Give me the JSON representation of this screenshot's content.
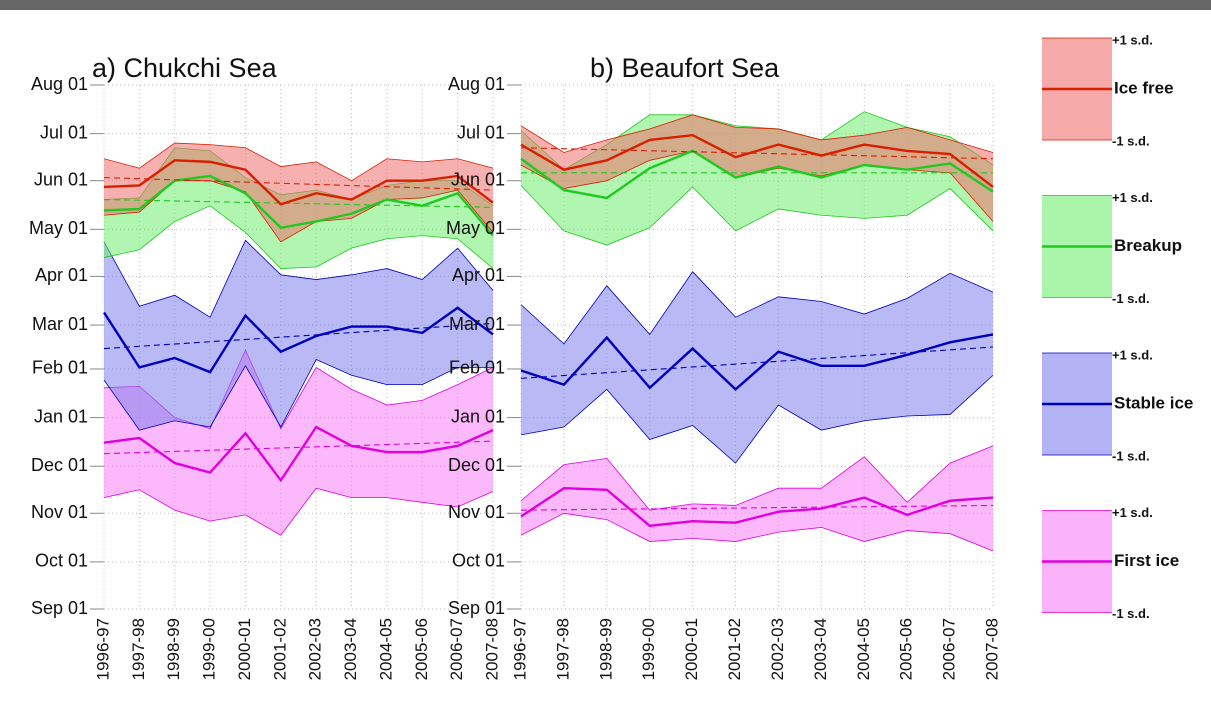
{
  "chart_data": [
    {
      "type": "band_line",
      "title": "a) Chukchi Sea",
      "categories": [
        "1996-97",
        "1997-98",
        "1998-99",
        "1999-00",
        "2000-01",
        "2001-02",
        "2002-03",
        "2003-04",
        "2004-05",
        "2005-06",
        "2006-07",
        "2007-08"
      ],
      "ylim": [
        0,
        334
      ],
      "yticks": [
        {
          "value": 0,
          "label": "Sep 01"
        },
        {
          "value": 30,
          "label": "Oct 01"
        },
        {
          "value": 61,
          "label": "Nov 01"
        },
        {
          "value": 91,
          "label": "Dec 01"
        },
        {
          "value": 122,
          "label": "Jan 01"
        },
        {
          "value": 153,
          "label": "Feb 01"
        },
        {
          "value": 181,
          "label": "Mar 01"
        },
        {
          "value": 212,
          "label": "Apr 01"
        },
        {
          "value": 242,
          "label": "May 01"
        },
        {
          "value": 273,
          "label": "Jun 01"
        },
        {
          "value": 303,
          "label": "Jul 01"
        },
        {
          "value": 334,
          "label": "Aug 01"
        }
      ],
      "grid": true,
      "series": [
        {
          "name": "First ice",
          "color": "#e000e0",
          "fill": "#f77ff7",
          "values": [
            106,
            109,
            93,
            87,
            112,
            82,
            116,
            104,
            100,
            100,
            104,
            114
          ],
          "upper": [
            141,
            142,
            122,
            115,
            165,
            115,
            154,
            140,
            130,
            133,
            143,
            154
          ],
          "lower": [
            71,
            76,
            63,
            56,
            60,
            47,
            77,
            71,
            71,
            68,
            65,
            75
          ],
          "trend": [
            99,
            107
          ]
        },
        {
          "name": "Stable ice",
          "color": "#0000c0",
          "fill": "#7f7fef",
          "values": [
            189,
            154,
            160,
            151,
            187,
            164,
            174,
            180,
            180,
            176,
            192,
            175
          ],
          "upper": [
            234,
            193,
            200,
            186,
            235,
            213,
            210,
            213,
            217,
            210,
            230,
            203
          ],
          "lower": [
            146,
            114,
            120,
            116,
            155,
            116,
            159,
            149,
            143,
            143,
            154,
            154
          ],
          "trend": [
            166,
            182
          ]
        },
        {
          "name": "Breakup",
          "color": "#20c820",
          "fill": "#6fef6f",
          "values": [
            254,
            255,
            273,
            276,
            265,
            243,
            247,
            252,
            261,
            257,
            265,
            238
          ],
          "upper": [
            261,
            262,
            294,
            292,
            275,
            264,
            267,
            261,
            270,
            273,
            273,
            257
          ],
          "lower": [
            224,
            229,
            247,
            257,
            240,
            217,
            218,
            230,
            236,
            238,
            236,
            217
          ],
          "trend": [
            261,
            256
          ]
        },
        {
          "name": "Ice free",
          "color": "#d82000",
          "fill": "#f07070",
          "values": [
            269,
            270,
            286,
            285,
            280,
            258,
            265,
            261,
            273,
            273,
            276,
            259
          ],
          "upper": [
            287,
            281,
            297,
            296,
            294,
            282,
            285,
            273,
            287,
            285,
            287,
            281
          ],
          "lower": [
            251,
            253,
            273,
            273,
            266,
            234,
            247,
            249,
            261,
            262,
            267,
            240
          ],
          "trend": [
            275,
            267
          ]
        }
      ]
    },
    {
      "type": "band_line",
      "title": "b) Beaufort Sea",
      "categories": [
        "1996-97",
        "1997-98",
        "1998-99",
        "1999-00",
        "2000-01",
        "2001-02",
        "2002-03",
        "2003-04",
        "2004-05",
        "2005-06",
        "2006-07",
        "2007-08"
      ],
      "ylim": [
        0,
        334
      ],
      "yticks": [
        {
          "value": 0,
          "label": "Sep 01"
        },
        {
          "value": 30,
          "label": "Oct 01"
        },
        {
          "value": 61,
          "label": "Nov 01"
        },
        {
          "value": 91,
          "label": "Dec 01"
        },
        {
          "value": 122,
          "label": "Jan 01"
        },
        {
          "value": 153,
          "label": "Feb 01"
        },
        {
          "value": 181,
          "label": "Mar 01"
        },
        {
          "value": 212,
          "label": "Apr 01"
        },
        {
          "value": 242,
          "label": "May 01"
        },
        {
          "value": 273,
          "label": "Jun 01"
        },
        {
          "value": 303,
          "label": "Jul 01"
        },
        {
          "value": 334,
          "label": "Aug 01"
        }
      ],
      "grid": true,
      "series": [
        {
          "name": "First ice",
          "color": "#e000e0",
          "fill": "#f77ff7",
          "values": [
            59,
            77,
            76,
            53,
            56,
            55,
            62,
            64,
            71,
            60,
            69,
            71
          ],
          "upper": [
            69,
            92,
            96,
            63,
            67,
            66,
            77,
            77,
            97,
            68,
            93,
            104
          ],
          "lower": [
            47,
            61,
            57,
            43,
            45,
            43,
            49,
            52,
            43,
            50,
            48,
            37
          ],
          "trend": [
            63,
            66
          ]
        },
        {
          "name": "Stable ice",
          "color": "#0000c0",
          "fill": "#7f7fef",
          "values": [
            152,
            143,
            173,
            141,
            166,
            140,
            164,
            155,
            155,
            162,
            170,
            175
          ],
          "upper": [
            194,
            169,
            206,
            175,
            215,
            186,
            199,
            196,
            188,
            198,
            214,
            202
          ],
          "lower": [
            111,
            116,
            140,
            108,
            117,
            93,
            130,
            114,
            120,
            123,
            124,
            149
          ],
          "trend": [
            147,
            167
          ]
        },
        {
          "name": "Breakup",
          "color": "#20c820",
          "fill": "#6fef6f",
          "values": [
            287,
            267,
            262,
            281,
            292,
            275,
            282,
            275,
            283,
            280,
            284,
            266
          ],
          "upper": [
            305,
            280,
            296,
            315,
            315,
            308,
            306,
            299,
            317,
            307,
            301,
            283
          ],
          "lower": [
            270,
            241,
            232,
            243,
            269,
            241,
            255,
            251,
            249,
            251,
            268,
            241
          ],
          "trend": [
            278,
            278
          ]
        },
        {
          "name": "Ice free",
          "color": "#d82000",
          "fill": "#f07070",
          "values": [
            296,
            280,
            286,
            299,
            302,
            288,
            296,
            289,
            296,
            292,
            290,
            269
          ],
          "upper": [
            308,
            291,
            299,
            306,
            315,
            307,
            306,
            299,
            302,
            307,
            299,
            291
          ],
          "lower": [
            283,
            268,
            273,
            286,
            292,
            275,
            281,
            276,
            283,
            280,
            278,
            247
          ],
          "trend": [
            294,
            287
          ]
        }
      ]
    }
  ],
  "legend": {
    "upper_label": "+1 s.d.",
    "lower_label": "-1 s.d."
  }
}
